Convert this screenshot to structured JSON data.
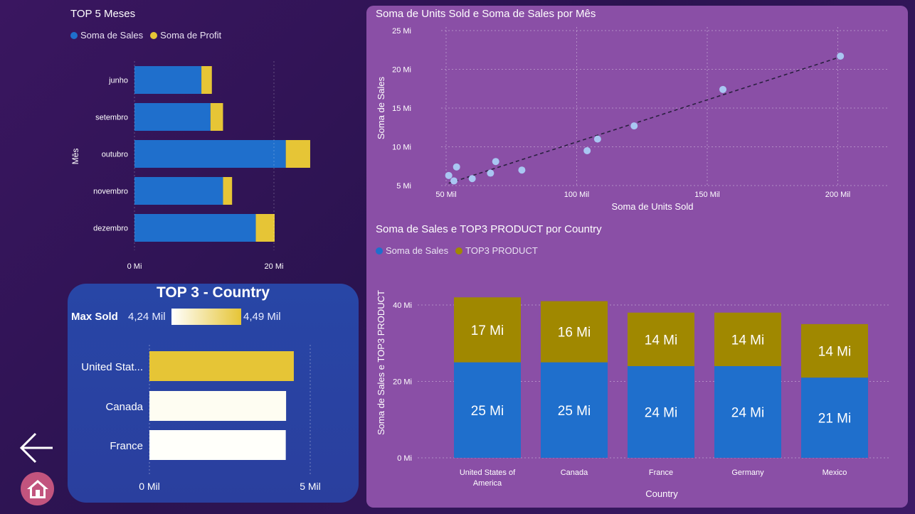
{
  "colors": {
    "sales_blue": "#1f6fcc",
    "profit_yellow": "#e6c536",
    "top3_olive": "#a08800",
    "scatter_point": "#a9c6f2",
    "panel_right": "#8a4fa6",
    "panel_blue": "#2a43a3",
    "home_button": "#c2547e"
  },
  "icons": {
    "back": "arrow-left-icon",
    "home": "home-icon"
  },
  "bar_top5": {
    "title": "TOP 5 Meses",
    "legend": [
      "Soma de  Sales",
      "Soma de Profit"
    ],
    "ylabel": "Mês",
    "x_ticks": [
      "0 Mi",
      "20 Mi"
    ]
  },
  "top3": {
    "title": "TOP 3 - Country",
    "max_sold_label": "Max Sold",
    "scale_min": "4,24 Mil",
    "scale_max": "4,49 Mil",
    "x_ticks": [
      "0 Mil",
      "5 Mil"
    ]
  },
  "scatter": {
    "title": "Soma de Units Sold e Soma de Sales por Mês",
    "xlabel": "Soma de Units Sold",
    "ylabel": "Soma de Sales",
    "x_ticks": [
      "50 Mil",
      "100 Mil",
      "150 Mil",
      "200 Mil"
    ],
    "y_ticks": [
      "5 Mi",
      "10 Mi",
      "15 Mi",
      "20 Mi",
      "25 Mi"
    ]
  },
  "stacked": {
    "title": "Soma de Sales e TOP3 PRODUCT por Country",
    "legend": [
      "Soma de  Sales",
      "TOP3 PRODUCT"
    ],
    "xlabel": "Country",
    "ylabel": "Soma de Sales e TOP3 PRODUCT",
    "y_ticks": [
      "0 Mi",
      "20 Mi",
      "40 Mi"
    ],
    "categories": [
      "United States of America",
      "Canada",
      "France",
      "Germany",
      "Mexico"
    ],
    "sales_labels": [
      "25 Mi",
      "25 Mi",
      "24 Mi",
      "24 Mi",
      "21 Mi"
    ],
    "top3_labels": [
      "17 Mi",
      "16 Mi",
      "14 Mi",
      "14 Mi",
      "14 Mi"
    ]
  },
  "chart_data": [
    {
      "type": "bar",
      "orientation": "horizontal",
      "stacked": true,
      "title": "TOP 5 Meses",
      "categories": [
        "junho",
        "setembro",
        "outubro",
        "novembro",
        "dezembro"
      ],
      "series": [
        {
          "name": "Soma de  Sales",
          "values": [
            9.6,
            10.9,
            21.7,
            12.7,
            17.4
          ]
        },
        {
          "name": "Soma de Profit",
          "values": [
            1.5,
            1.8,
            3.5,
            1.3,
            2.7
          ]
        }
      ],
      "xlabel": "",
      "ylabel": "Mês",
      "xlim": [
        0,
        25
      ],
      "legend": "top-left"
    },
    {
      "type": "bar",
      "orientation": "horizontal",
      "title": "TOP 3 - Country",
      "categories": [
        "United Stat...",
        "Canada",
        "France"
      ],
      "values": [
        4.49,
        4.25,
        4.24
      ],
      "xlim": [
        0,
        5
      ],
      "grid": true
    },
    {
      "type": "scatter",
      "title": "Soma de Units Sold e Soma de Sales por Mês",
      "xlabel": "Soma de Units Sold",
      "ylabel": "Soma de Sales",
      "x": [
        51,
        53,
        54,
        60,
        67,
        69,
        79,
        104,
        108,
        122,
        156,
        201
      ],
      "y": [
        6.3,
        5.6,
        7.4,
        5.9,
        6.6,
        8.1,
        7.0,
        9.5,
        11.0,
        12.7,
        17.4,
        21.7
      ],
      "xlim": [
        48,
        210
      ],
      "ylim": [
        5,
        25
      ],
      "trendline": {
        "x": [
          51,
          201
        ],
        "y": [
          5.3,
          21.6
        ]
      },
      "grid": true
    },
    {
      "type": "bar",
      "stacked": true,
      "title": "Soma de Sales e TOP3 PRODUCT por Country",
      "categories": [
        "United States of America",
        "Canada",
        "France",
        "Germany",
        "Mexico"
      ],
      "series": [
        {
          "name": "Soma de  Sales",
          "values": [
            25,
            25,
            24,
            24,
            21
          ]
        },
        {
          "name": "TOP3 PRODUCT",
          "values": [
            17,
            16,
            14,
            14,
            14
          ]
        }
      ],
      "xlabel": "Country",
      "ylabel": "Soma de Sales e TOP3 PRODUCT",
      "ylim": [
        0,
        40
      ],
      "legend": "top-left"
    }
  ]
}
